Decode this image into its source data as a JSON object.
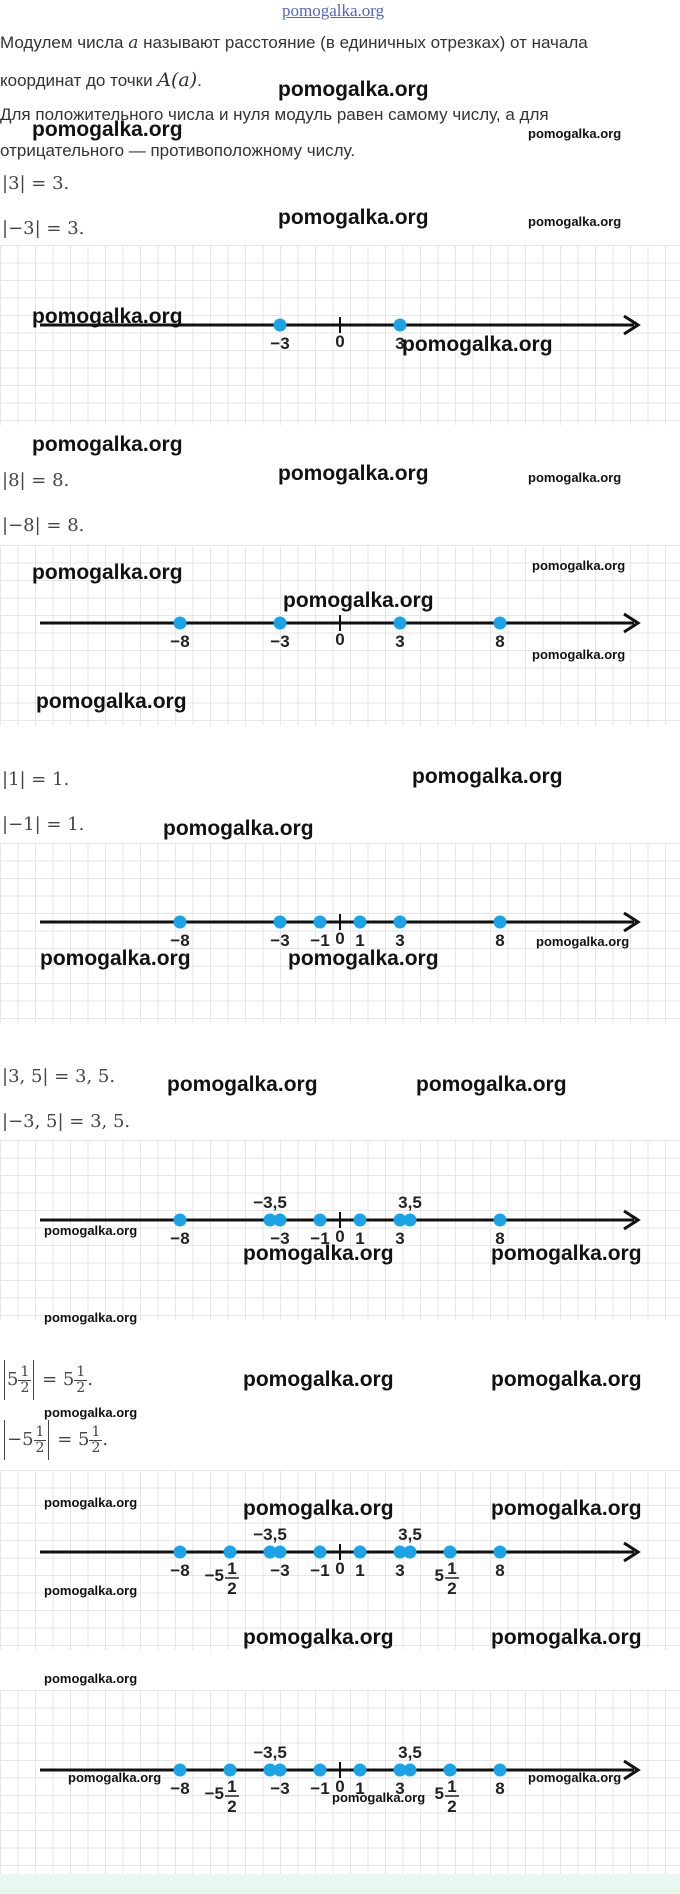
{
  "header": {
    "site_link": "pomogalka.org"
  },
  "intro": {
    "line1_a": "Модулем числа ",
    "var_a": "a",
    "line1_b": " называют расстояние (в единичных отрезках) от начала",
    "line2_a": "координат до точки ",
    "point": "A(a)",
    "line2_b": ".",
    "line3": "Для положительного числа и нуля модуль равен самому числу, а для",
    "line4": "отрицательного — противоположному числу."
  },
  "watermark": "pomogalka.org",
  "equations": {
    "e1": "|3| = 3.",
    "e2": "|−3| = 3.",
    "e3": "|8| = 8.",
    "e4": "|−8| = 8.",
    "e5": "|1| = 1.",
    "e6": "|−1| = 1.",
    "e7": "|3, 5| = 3, 5.",
    "e8": "|−3, 5| = 3, 5.",
    "e9": {
      "inner_int": "5",
      "num": "1",
      "den": "2",
      "eq": " = 5",
      "end": "."
    },
    "e10": {
      "inner_int": "−5",
      "num": "1",
      "den": "2",
      "eq": " = 5",
      "end": "."
    }
  },
  "number_lines": [
    {
      "points": [
        {
          "value": -3,
          "label": "−3"
        },
        {
          "value": 3,
          "label": "3"
        }
      ],
      "ticks": [
        {
          "value": 0,
          "label": "0"
        }
      ]
    },
    {
      "points": [
        {
          "value": -8,
          "label": "−8"
        },
        {
          "value": -3,
          "label": "−3"
        },
        {
          "value": 3,
          "label": "3"
        },
        {
          "value": 8,
          "label": "8"
        }
      ],
      "ticks": [
        {
          "value": 0,
          "label": "0"
        }
      ]
    },
    {
      "points": [
        {
          "value": -8,
          "label": "−8"
        },
        {
          "value": -3,
          "label": "−3"
        },
        {
          "value": -1,
          "label": "−1"
        },
        {
          "value": 1,
          "label": "1"
        },
        {
          "value": 3,
          "label": "3"
        },
        {
          "value": 8,
          "label": "8"
        }
      ],
      "ticks": [
        {
          "value": 0,
          "label": "0"
        }
      ]
    },
    {
      "points": [
        {
          "value": -8,
          "label": "−8"
        },
        {
          "value": -3.5,
          "label": "−3,5",
          "above": true
        },
        {
          "value": -3,
          "label": "−3"
        },
        {
          "value": -1,
          "label": "−1"
        },
        {
          "value": 1,
          "label": "1"
        },
        {
          "value": 3,
          "label": "3"
        },
        {
          "value": 3.5,
          "label": "3,5",
          "above": true
        },
        {
          "value": 8,
          "label": "8"
        }
      ],
      "ticks": [
        {
          "value": 0,
          "label": "0"
        }
      ]
    },
    {
      "points": [
        {
          "value": -8,
          "label": "−8"
        },
        {
          "value": -5.5,
          "label": "−5",
          "frac": [
            "1",
            "2"
          ]
        },
        {
          "value": -3.5,
          "label": "−3,5",
          "above": true
        },
        {
          "value": -3,
          "label": "−3"
        },
        {
          "value": -1,
          "label": "−1"
        },
        {
          "value": 1,
          "label": "1"
        },
        {
          "value": 3,
          "label": "3"
        },
        {
          "value": 3.5,
          "label": "3,5",
          "above": true
        },
        {
          "value": 5.5,
          "label": "5",
          "frac": [
            "1",
            "2"
          ]
        },
        {
          "value": 8,
          "label": "8"
        }
      ],
      "ticks": [
        {
          "value": 0,
          "label": "0"
        }
      ]
    },
    {
      "points": [
        {
          "value": -8,
          "label": "−8"
        },
        {
          "value": -5.5,
          "label": "−5",
          "frac": [
            "1",
            "2"
          ]
        },
        {
          "value": -3.5,
          "label": "−3,5",
          "above": true
        },
        {
          "value": -3,
          "label": "−3"
        },
        {
          "value": -1,
          "label": "−1"
        },
        {
          "value": 1,
          "label": "1"
        },
        {
          "value": 3,
          "label": "3"
        },
        {
          "value": 3.5,
          "label": "3,5",
          "above": true
        },
        {
          "value": 5.5,
          "label": "5",
          "frac": [
            "1",
            "2"
          ]
        },
        {
          "value": 8,
          "label": "8"
        }
      ],
      "ticks": [
        {
          "value": 0,
          "label": "0"
        }
      ]
    }
  ],
  "colors": {
    "point": "#1aa3e6",
    "axis": "#111111",
    "grid": "#e6e6e6",
    "link": "#5563c9"
  }
}
